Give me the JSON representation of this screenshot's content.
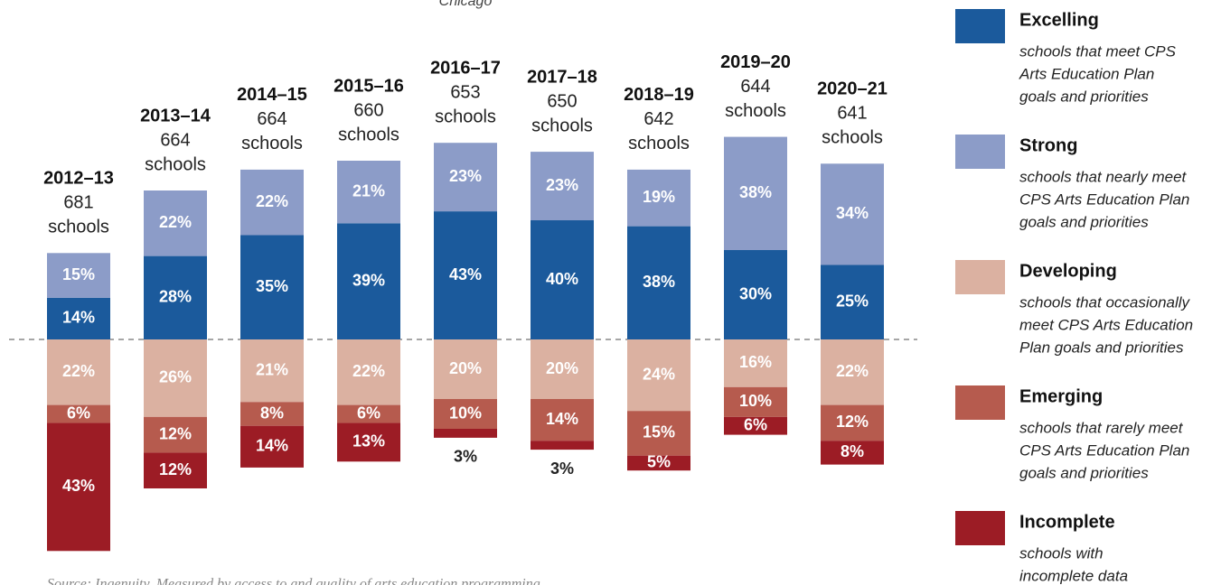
{
  "chart_data": {
    "type": "diverging-stacked-bar",
    "subtitle": "Chicago",
    "source": "Source: Ingenuity. Measured by access to and quality of arts education programming.",
    "categories": [
      "2012–13",
      "2013–14",
      "2014–15",
      "2015–16",
      "2016–17",
      "2017–18",
      "2018–19",
      "2019–20",
      "2020–21"
    ],
    "school_counts": [
      681,
      664,
      664,
      660,
      653,
      650,
      642,
      644,
      641
    ],
    "schools_label": "schools",
    "series": [
      {
        "name": "Excelling",
        "side": "positive",
        "color": "#1b5a9c",
        "description": [
          "schools that meet CPS",
          "Arts Education Plan",
          "goals and priorities"
        ],
        "values": [
          14,
          28,
          35,
          39,
          43,
          40,
          38,
          30,
          25
        ],
        "value_labels": [
          "14%",
          "28%",
          "35%",
          "39%",
          "43%",
          "40%",
          "38%",
          "30%",
          "25%"
        ]
      },
      {
        "name": "Strong",
        "side": "positive",
        "color": "#8c9cc8",
        "description": [
          "schools that nearly meet",
          "CPS Arts Education Plan",
          "goals and priorities"
        ],
        "values": [
          15,
          22,
          22,
          21,
          23,
          23,
          19,
          38,
          34
        ],
        "value_labels": [
          "15%",
          "22%",
          "22%",
          "21%",
          "23%",
          "23%",
          "19%",
          "38%",
          "34%"
        ]
      },
      {
        "name": "Developing",
        "side": "negative",
        "color": "#dbb1a1",
        "description": [
          "schools that occasionally",
          "meet CPS Arts Education",
          "Plan goals and priorities"
        ],
        "values": [
          22,
          26,
          21,
          22,
          20,
          20,
          24,
          16,
          22
        ],
        "value_labels": [
          "22%",
          "26%",
          "21%",
          "22%",
          "20%",
          "20%",
          "24%",
          "16%",
          "22%"
        ]
      },
      {
        "name": "Emerging",
        "side": "negative",
        "color": "#b65b4e",
        "description": [
          "schools that rarely meet",
          "CPS Arts Education Plan",
          "goals and priorities"
        ],
        "values": [
          6,
          12,
          8,
          6,
          10,
          14,
          15,
          10,
          12
        ],
        "value_labels": [
          "6%",
          "12%",
          "8%",
          "6%",
          "10%",
          "14%",
          "15%",
          "10%",
          "12%"
        ]
      },
      {
        "name": "Incomplete",
        "side": "negative",
        "color": "#9c1c25",
        "description": [
          "schools with",
          "incomplete data"
        ],
        "values": [
          43,
          12,
          14,
          13,
          3,
          3,
          5,
          6,
          8
        ],
        "value_labels": [
          "43%",
          "12%",
          "14%",
          "13%",
          "3%",
          "3%",
          "5%",
          "6%",
          "8%"
        ]
      }
    ]
  }
}
